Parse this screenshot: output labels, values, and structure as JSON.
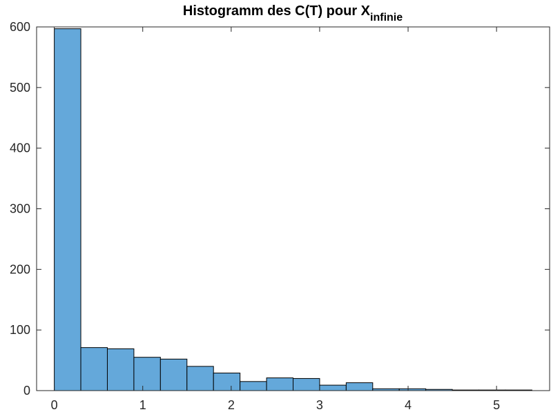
{
  "chart_data": {
    "type": "bar",
    "title": {
      "main": "Histogramm des C(T) pour X",
      "subscript": "infinie"
    },
    "xlabel": "",
    "ylabel": "",
    "xlim": [
      -0.2,
      5.6
    ],
    "ylim": [
      0,
      600
    ],
    "xticks": [
      0,
      1,
      2,
      3,
      4,
      5
    ],
    "yticks": [
      0,
      100,
      200,
      300,
      400,
      500,
      600
    ],
    "grid": false,
    "bin_width": 0.3,
    "bin_edges": [
      0,
      0.3,
      0.6,
      0.9,
      1.2,
      1.5,
      1.8,
      2.1,
      2.4,
      2.7,
      3.0,
      3.3,
      3.6,
      3.9,
      4.2,
      4.5,
      4.8,
      5.1,
      5.4
    ],
    "values": [
      597,
      71,
      69,
      55,
      52,
      40,
      29,
      15,
      21,
      20,
      9,
      13,
      3,
      3,
      2,
      1,
      1,
      1
    ],
    "bar_color": "#64A8DA",
    "edge_color": "#000000"
  }
}
